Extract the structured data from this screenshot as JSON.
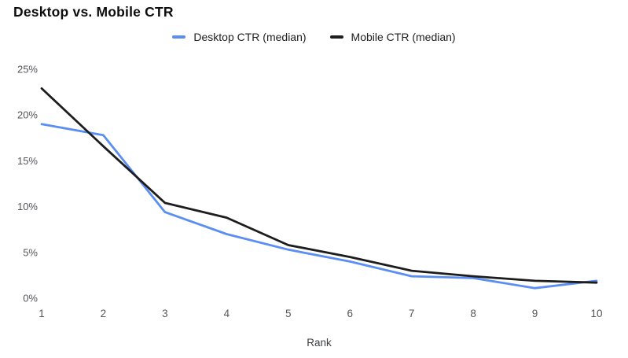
{
  "title": "Desktop vs. Mobile CTR",
  "chart_data": {
    "type": "line",
    "title": "Desktop vs. Mobile CTR",
    "x": [
      1,
      2,
      3,
      4,
      5,
      6,
      7,
      8,
      9,
      10
    ],
    "xlabel": "Rank",
    "ylabel": "",
    "ylim": [
      0,
      25
    ],
    "yticks": [
      0,
      5,
      10,
      15,
      20,
      25
    ],
    "ytick_labels": [
      "0%",
      "5%",
      "10%",
      "15%",
      "20%",
      "25%"
    ],
    "grid": false,
    "legend_position": "top-center",
    "series": [
      {
        "name": "Desktop CTR (median)",
        "color": "#5b8ef2",
        "values": [
          19.0,
          17.8,
          9.4,
          7.0,
          5.3,
          4.0,
          2.4,
          2.2,
          1.1,
          1.9
        ]
      },
      {
        "name": "Mobile CTR (median)",
        "color": "#1d1d1d",
        "values": [
          22.9,
          16.6,
          10.4,
          8.8,
          5.8,
          4.5,
          3.0,
          2.4,
          1.9,
          1.7
        ]
      }
    ]
  }
}
